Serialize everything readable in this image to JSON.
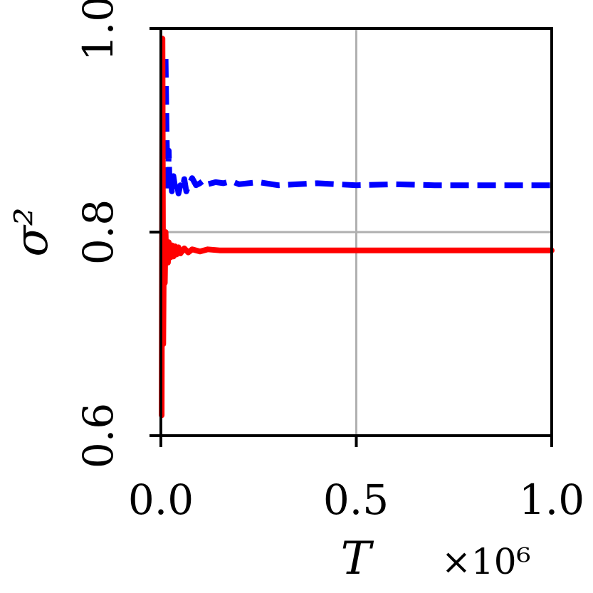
{
  "chart_data": {
    "type": "line",
    "title": "",
    "xlabel": "T",
    "ylabel": "σ²",
    "x_offset_label": "×10⁶",
    "xlim": [
      0.0,
      1.0
    ],
    "ylim": [
      0.6,
      1.0
    ],
    "xticks": [
      "0.0",
      "0.5",
      "1.0"
    ],
    "yticks": [
      "0.6",
      "0.8",
      "1.0"
    ],
    "grid": true,
    "series": [
      {
        "color": "#0000ff",
        "style": "dashed",
        "x": [
          0.012,
          0.015,
          0.018,
          0.02,
          0.022,
          0.025,
          0.028,
          0.032,
          0.036,
          0.04,
          0.045,
          0.05,
          0.055,
          0.06,
          0.065,
          0.07,
          0.08,
          0.09,
          0.1,
          0.11,
          0.12,
          0.14,
          0.16,
          0.18,
          0.2,
          0.25,
          0.3,
          0.4,
          0.5,
          0.6,
          0.7,
          0.8,
          0.9,
          1.0
        ],
        "y": [
          0.97,
          0.89,
          0.84,
          0.88,
          0.85,
          0.86,
          0.84,
          0.855,
          0.845,
          0.85,
          0.838,
          0.846,
          0.842,
          0.852,
          0.84,
          0.845,
          0.853,
          0.846,
          0.848,
          0.851,
          0.847,
          0.849,
          0.848,
          0.85,
          0.847,
          0.849,
          0.846,
          0.848,
          0.846,
          0.847,
          0.846,
          0.846,
          0.846,
          0.846
        ]
      },
      {
        "color": "#ff0000",
        "style": "solid",
        "x": [
          0.002,
          0.004,
          0.006,
          0.008,
          0.01,
          0.012,
          0.014,
          0.016,
          0.018,
          0.02,
          0.024,
          0.028,
          0.032,
          0.036,
          0.04,
          0.045,
          0.05,
          0.06,
          0.07,
          0.08,
          0.1,
          0.12,
          0.15,
          0.2,
          0.3,
          0.4,
          0.5,
          0.6,
          0.7,
          0.8,
          0.9,
          1.0
        ],
        "y": [
          0.62,
          0.99,
          0.69,
          0.8,
          0.75,
          0.8,
          0.77,
          0.79,
          0.77,
          0.79,
          0.775,
          0.787,
          0.776,
          0.786,
          0.778,
          0.785,
          0.779,
          0.784,
          0.78,
          0.783,
          0.781,
          0.783,
          0.782,
          0.782,
          0.782,
          0.782,
          0.782,
          0.782,
          0.782,
          0.782,
          0.782,
          0.782
        ]
      }
    ]
  }
}
